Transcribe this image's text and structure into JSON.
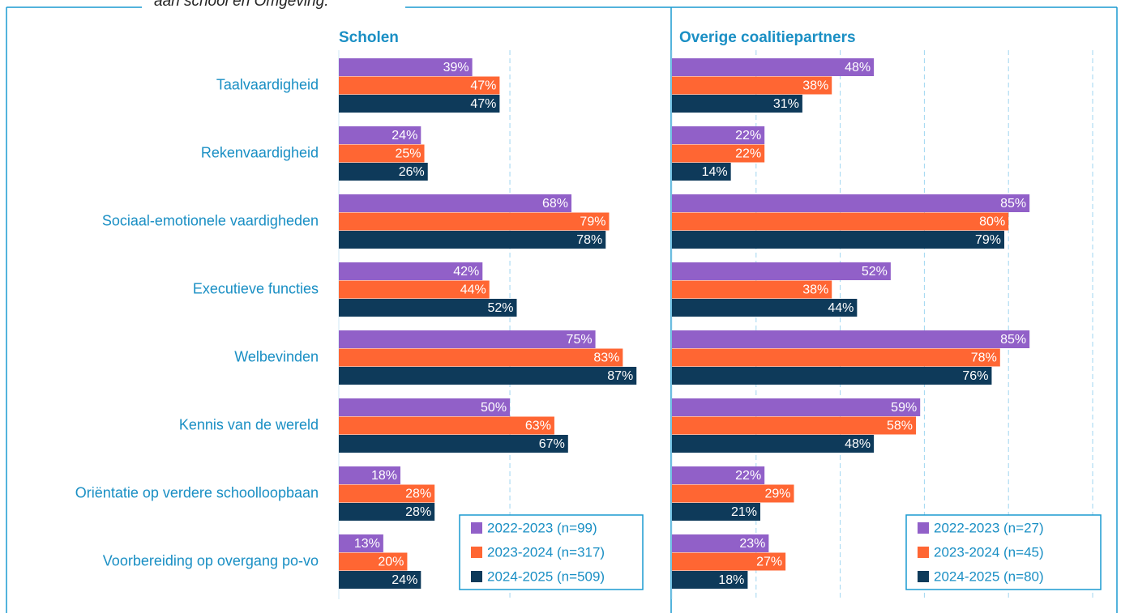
{
  "caption": "aan school en Omgeving:",
  "chart_data": [
    {
      "type": "barh",
      "title": "Scholen",
      "categories": [
        "Taalvaardigheid",
        "Rekenvaardigheid",
        "Sociaal-emotionele vaardigheden",
        "Executieve functies",
        "Welbevinden",
        "Kennis van de wereld",
        "Oriëntatie op verdere schoolloopbaan",
        "Voorbereiding op overgang po-vo"
      ],
      "series": [
        {
          "name": "2022-2023 (n=99)",
          "color": "#9160c8",
          "values": [
            39,
            24,
            68,
            42,
            75,
            50,
            18,
            13
          ],
          "value_labels": [
            "39%",
            "24%",
            "68%",
            "42%",
            "75%",
            "50%",
            "18%",
            "13%"
          ]
        },
        {
          "name": "2023-2024 (n=317)",
          "color": "#ff6633",
          "values": [
            47,
            25,
            79,
            44,
            83,
            63,
            28,
            20
          ],
          "value_labels": [
            "47%",
            "25%",
            "79%",
            "44%",
            "83%",
            "63%",
            "28%",
            "20%"
          ]
        },
        {
          "name": "2024-2025 (n=509)",
          "color": "#0e3a5a",
          "values": [
            47,
            26,
            78,
            52,
            87,
            67,
            28,
            24
          ],
          "value_labels": [
            "47%",
            "26%",
            "78%",
            "52%",
            "87%",
            "67%",
            "28%",
            "24%"
          ]
        }
      ],
      "xlim": [
        0,
        95
      ],
      "xticks": [
        0,
        50
      ],
      "grid": true,
      "legend": "lower right"
    },
    {
      "type": "barh",
      "title": "Overige coalitiepartners",
      "series": [
        {
          "name": "2022-2023 (n=27)",
          "color": "#9160c8",
          "values": [
            48,
            22,
            85,
            52,
            85,
            59,
            22,
            23
          ],
          "value_labels": [
            "48%",
            "22%",
            "85%",
            "52%",
            "85%",
            "59%",
            "22%",
            "23%"
          ]
        },
        {
          "name": "2023-2024 (n=45)",
          "color": "#ff6633",
          "values": [
            38,
            22,
            80,
            38,
            78,
            58,
            29,
            27
          ],
          "value_labels": [
            "38%",
            "22%",
            "80%",
            "38%",
            "78%",
            "58%",
            "29%",
            "27%"
          ]
        },
        {
          "name": "2024-2025 (n=80)",
          "color": "#0e3a5a",
          "values": [
            31,
            14,
            79,
            44,
            76,
            48,
            21,
            18
          ],
          "value_labels": [
            "31%",
            "14%",
            "79%",
            "44%",
            "76%",
            "48%",
            "21%",
            "18%"
          ]
        }
      ],
      "xlim": [
        0,
        100
      ],
      "xticks": [
        0,
        20,
        40,
        60,
        80,
        100
      ],
      "grid": true,
      "legend": "lower right"
    }
  ]
}
